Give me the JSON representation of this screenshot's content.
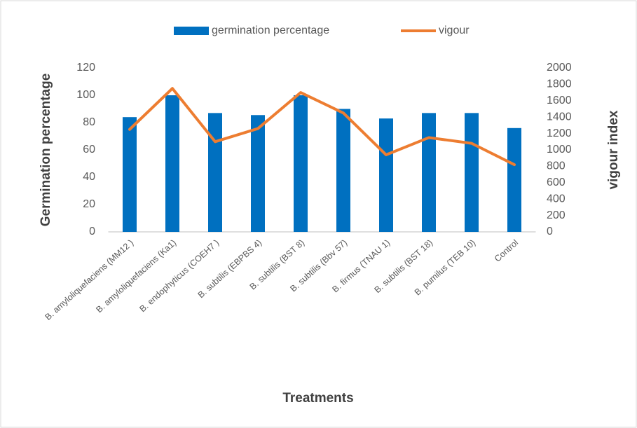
{
  "chart_data": {
    "type": "bar",
    "categories": [
      "B. amyloliquefaciens (MM12 )",
      "B. amyloliquefaciens (Ka1)",
      "B. endophyticus (COEH7 )",
      "B. subtilis (EBPBS 4)",
      "B. subtilis (BST 8)",
      "B. subtilis (Bbv 57)",
      "B. firmus (TNAU 1)",
      "B. subtilis (BST 18)",
      "B. pumilus (TEB 10)",
      "Control"
    ],
    "series": [
      {
        "name": "germination percentage",
        "color": "#0070c0",
        "values": [
          84,
          100,
          87,
          85.5,
          100,
          90,
          83,
          87,
          87,
          76
        ]
      },
      {
        "name": "vigour",
        "type": "line",
        "axis": "y2",
        "color": "#ed7d31",
        "values": [
          1250,
          1750,
          1100,
          1260,
          1700,
          1450,
          940,
          1150,
          1080,
          820
        ]
      }
    ],
    "xlabel": "Treatments",
    "ylabel": "Germination percentage",
    "y2label": "vigour index",
    "ylim": [
      0,
      120
    ],
    "yticks": [
      0,
      20,
      40,
      60,
      80,
      100,
      120
    ],
    "y2lim": [
      0,
      2000
    ],
    "y2ticks": [
      0,
      200,
      400,
      600,
      800,
      1000,
      1200,
      1400,
      1600,
      1800,
      2000
    ],
    "legend": "top",
    "grid": false
  }
}
